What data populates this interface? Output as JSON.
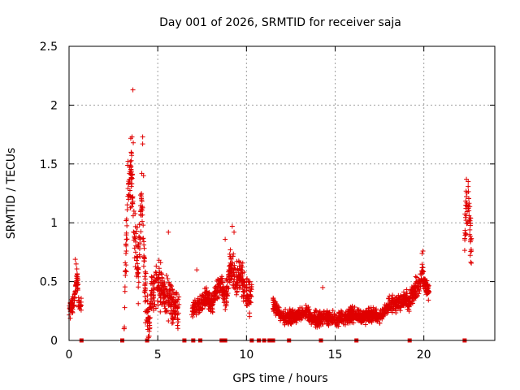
{
  "chart_data": {
    "type": "scatter",
    "title": "Day 001 of 2026, SRMTID for receiver saja",
    "xlabel": "GPS time / hours",
    "ylabel": "SRMTID / TECUs",
    "xlim": [
      0,
      24
    ],
    "ylim": [
      0,
      2.5
    ],
    "xticks": [
      0,
      5,
      10,
      15,
      20
    ],
    "yticks": [
      0,
      0.5,
      1,
      1.5,
      2,
      2.5
    ],
    "ytick_labels": [
      "0",
      "0.5",
      "1",
      "1.5",
      "2",
      "2.5"
    ],
    "grid": true,
    "marker": "plus",
    "color": "#e00000",
    "series": [
      {
        "name": "SRMTID",
        "segments": [
          {
            "t0": 0.0,
            "t1": 0.7,
            "levels": [
              [
                0.0,
                0.25
              ],
              [
                0.15,
                0.28
              ],
              [
                0.3,
                0.35
              ],
              [
                0.45,
                0.55
              ],
              [
                0.55,
                0.32
              ],
              [
                0.7,
                0.3
              ]
            ],
            "spread": 0.1
          },
          {
            "t0": 3.1,
            "t1": 4.6,
            "levels": [
              [
                3.1,
                0.2
              ],
              [
                3.3,
                1.25
              ],
              [
                3.5,
                1.45
              ],
              [
                3.7,
                0.9
              ],
              [
                3.9,
                0.6
              ],
              [
                4.1,
                1.2
              ],
              [
                4.3,
                0.4
              ],
              [
                4.5,
                0.1
              ],
              [
                4.6,
                0.2
              ]
            ],
            "spread": 0.35
          },
          {
            "t0": 4.6,
            "t1": 6.2,
            "levels": [
              [
                4.6,
                0.35
              ],
              [
                4.9,
                0.5
              ],
              [
                5.2,
                0.45
              ],
              [
                5.5,
                0.4
              ],
              [
                5.8,
                0.3
              ],
              [
                6.2,
                0.25
              ]
            ],
            "spread": 0.25
          },
          {
            "t0": 6.9,
            "t1": 8.1,
            "levels": [
              [
                6.9,
                0.25
              ],
              [
                7.3,
                0.3
              ],
              [
                7.7,
                0.35
              ],
              [
                8.1,
                0.3
              ]
            ],
            "spread": 0.12
          },
          {
            "t0": 8.1,
            "t1": 8.8,
            "levels": [
              [
                8.1,
                0.35
              ],
              [
                8.5,
                0.5
              ],
              [
                8.8,
                0.4
              ]
            ],
            "spread": 0.15
          },
          {
            "t0": 8.8,
            "t1": 10.3,
            "levels": [
              [
                8.8,
                0.3
              ],
              [
                9.1,
                0.65
              ],
              [
                9.4,
                0.5
              ],
              [
                9.7,
                0.55
              ],
              [
                10.0,
                0.4
              ],
              [
                10.3,
                0.35
              ]
            ],
            "spread": 0.2
          },
          {
            "t0": 11.5,
            "t1": 13.5,
            "levels": [
              [
                11.5,
                0.3
              ],
              [
                12.0,
                0.2
              ],
              [
                12.5,
                0.2
              ],
              [
                13.0,
                0.22
              ],
              [
                13.5,
                0.25
              ]
            ],
            "spread": 0.08
          },
          {
            "t0": 13.5,
            "t1": 16.0,
            "levels": [
              [
                13.5,
                0.2
              ],
              [
                14.0,
                0.18
              ],
              [
                14.5,
                0.2
              ],
              [
                15.0,
                0.18
              ],
              [
                15.5,
                0.2
              ],
              [
                16.0,
                0.22
              ]
            ],
            "spread": 0.09
          },
          {
            "t0": 16.0,
            "t1": 18.0,
            "levels": [
              [
                16.0,
                0.22
              ],
              [
                16.5,
                0.2
              ],
              [
                17.0,
                0.22
              ],
              [
                17.5,
                0.2
              ],
              [
                18.0,
                0.28
              ]
            ],
            "spread": 0.08
          },
          {
            "t0": 18.0,
            "t1": 19.2,
            "levels": [
              [
                18.0,
                0.3
              ],
              [
                18.5,
                0.32
              ],
              [
                19.0,
                0.35
              ],
              [
                19.2,
                0.3
              ]
            ],
            "spread": 0.1
          },
          {
            "t0": 19.2,
            "t1": 20.3,
            "levels": [
              [
                19.2,
                0.35
              ],
              [
                19.6,
                0.45
              ],
              [
                19.9,
                0.55
              ],
              [
                20.3,
                0.4
              ]
            ],
            "spread": 0.12
          },
          {
            "t0": 22.3,
            "t1": 22.7,
            "levels": [
              [
                22.3,
                0.9
              ],
              [
                22.45,
                1.2
              ],
              [
                22.6,
                1.0
              ],
              [
                22.7,
                0.8
              ]
            ],
            "spread": 0.3
          }
        ],
        "outliers": [
          [
            3.6,
            2.13
          ],
          [
            3.55,
            1.73
          ],
          [
            3.62,
            1.68
          ],
          [
            4.15,
            1.73
          ],
          [
            4.15,
            1.67
          ],
          [
            3.5,
            1.6
          ],
          [
            3.45,
            1.52
          ],
          [
            4.1,
            1.42
          ],
          [
            4.2,
            1.4
          ],
          [
            3.4,
            1.42
          ],
          [
            9.2,
            0.97
          ],
          [
            9.3,
            0.92
          ],
          [
            5.6,
            0.92
          ],
          [
            19.95,
            0.76
          ],
          [
            19.9,
            0.74
          ],
          [
            22.4,
            1.37
          ],
          [
            22.5,
            1.35
          ],
          [
            0.35,
            0.69
          ],
          [
            0.4,
            0.65
          ],
          [
            8.8,
            0.86
          ],
          [
            7.2,
            0.6
          ],
          [
            10.2,
            0.5
          ],
          [
            14.3,
            0.45
          ],
          [
            19.95,
            0.62
          ]
        ]
      }
    ],
    "gap_markers_x": [
      0.7,
      3.0,
      4.4,
      6.5,
      7.0,
      7.4,
      8.6,
      8.8,
      10.3,
      10.7,
      11.0,
      11.3,
      11.5,
      12.4,
      14.2,
      16.2,
      19.2,
      22.3
    ]
  }
}
